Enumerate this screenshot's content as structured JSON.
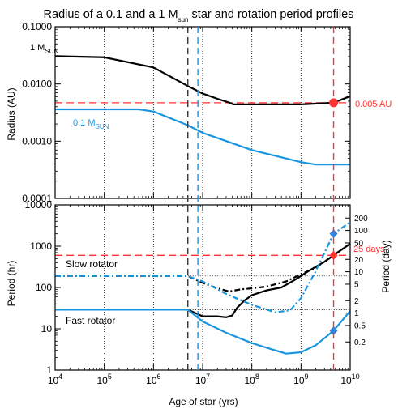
{
  "chart_data": {
    "type": "line",
    "title": {
      "main": "Radius of a 0.1 and a 1 M",
      "sub": "sun",
      "tail": " star and rotation period profiles"
    },
    "x_axis": {
      "label": "Age of star (yrs)",
      "scale": "log",
      "range": [
        10000,
        10000000000
      ],
      "tick_labels": [
        {
          "base": "10",
          "exp": "4"
        },
        {
          "base": "10",
          "exp": "5"
        },
        {
          "base": "10",
          "exp": "6"
        },
        {
          "base": "10",
          "exp": "7"
        },
        {
          "base": "10",
          "exp": "8"
        },
        {
          "base": "10",
          "exp": "9"
        },
        {
          "base": "10",
          "exp": "10"
        }
      ]
    },
    "colors": {
      "one_msun": "#000000",
      "tenth_msun": "#1a96e0",
      "reference": "#ff3333",
      "marker_blue": "#2f86e0",
      "dashed_black": "#333333"
    },
    "vertical_lines": [
      {
        "x": 5000000,
        "color": "#333333",
        "style": "dashed"
      },
      {
        "x": 8000000,
        "color": "#1a96e0",
        "style": "dashed"
      },
      {
        "x": 4600000000,
        "color": "#ff3333",
        "style": "dashed"
      }
    ],
    "panels": [
      {
        "name": "radius",
        "ylabel": "Radius (AU)",
        "yscale": "log",
        "ylim": [
          0.0001,
          0.1
        ],
        "ytick_labels": [
          "0.1000",
          "0.0100",
          "0.0010",
          "0.0001"
        ],
        "reference_line": {
          "y": 0.0047,
          "label": "0.005 AU"
        },
        "marker": {
          "x": 4600000000,
          "y": 0.0047,
          "shape": "circle",
          "color": "#ff3333"
        },
        "series_labels": [
          {
            "main": "1 M",
            "sub": "SUN",
            "color": "#000000"
          },
          {
            "main": "0.1 M",
            "sub": "SUN",
            "color": "#1a96e0"
          }
        ],
        "series": [
          {
            "color": "#000000",
            "style": "solid",
            "points": [
              [
                10000,
                0.0305
              ],
              [
                100000,
                0.0292
              ],
              [
                1000000,
                0.0194
              ],
              [
                5000000,
                0.0092
              ],
              [
                10000000,
                0.0068
              ],
              [
                20000000,
                0.0055
              ],
              [
                35000000,
                0.0047
              ],
              [
                42000000,
                0.0044
              ],
              [
                100000000,
                0.0044
              ],
              [
                1000000000,
                0.0044
              ],
              [
                4600000000,
                0.0047
              ],
              [
                10000000000,
                0.0061
              ]
            ]
          },
          {
            "color": "#1a96e0",
            "style": "solid",
            "points": [
              [
                10000,
                0.0036
              ],
              [
                500000,
                0.0036
              ],
              [
                1000000,
                0.0033
              ],
              [
                5000000,
                0.0019
              ],
              [
                10000000,
                0.0014
              ],
              [
                100000000,
                0.0007
              ],
              [
                1000000000,
                0.00043
              ],
              [
                2000000000,
                0.00039
              ],
              [
                10000000000,
                0.00039
              ]
            ]
          }
        ]
      },
      {
        "name": "period",
        "ylabel": "Period (hr)",
        "ylabel_right": "Period (day)",
        "yscale": "log",
        "ylim": [
          1,
          10000
        ],
        "ytick_labels": [
          "10000",
          "1000",
          "100",
          "10",
          "1"
        ],
        "right_tick_labels": [
          "200",
          "100",
          "50",
          "20",
          "10",
          "5",
          "2",
          "1",
          "0.5",
          "0.2"
        ],
        "right_tick_values": [
          200,
          100,
          50,
          20,
          10,
          5,
          2,
          1,
          0.5,
          0.2
        ],
        "reference_line": {
          "y": 600,
          "label": "25 days"
        },
        "annotations": [
          "Slow rotator",
          "Fast rotator"
        ],
        "markers": [
          {
            "x": 4600000000,
            "y": 600,
            "shape": "diamond",
            "color": "#ff3333"
          },
          {
            "x": 4600000000,
            "y": 2000,
            "shape": "diamond",
            "color": "#2f86e0"
          },
          {
            "x": 4600000000,
            "y": 9,
            "shape": "diamond",
            "color": "#2f86e0"
          }
        ],
        "dotted_guides": [
          {
            "y": 190,
            "x_from": 5000000,
            "x_to": 10000000000
          },
          {
            "y": 29,
            "x_from": 5000000,
            "x_to": 10000000000
          }
        ],
        "series": [
          {
            "color": "#000000",
            "style": "dashdot",
            "points": [
              [
                10000,
                190
              ],
              [
                5000000,
                190
              ],
              [
                10000000,
                130
              ],
              [
                20000000,
                95
              ],
              [
                35000000,
                80
              ],
              [
                60000000,
                90
              ],
              [
                100000000,
                95
              ],
              [
                200000000,
                105
              ],
              [
                500000000,
                140
              ],
              [
                1000000000,
                210
              ],
              [
                2000000000,
                300
              ],
              [
                4600000000,
                600
              ],
              [
                10000000000,
                1150
              ]
            ]
          },
          {
            "color": "#000000",
            "style": "solid",
            "points": [
              [
                10000,
                29
              ],
              [
                5000000,
                29
              ],
              [
                10000000,
                20
              ],
              [
                20000000,
                20
              ],
              [
                30000000,
                19
              ],
              [
                40000000,
                21
              ],
              [
                50000000,
                32
              ],
              [
                70000000,
                48
              ],
              [
                100000000,
                65
              ],
              [
                200000000,
                85
              ],
              [
                400000000,
                100
              ],
              [
                800000000,
                160
              ],
              [
                1500000000,
                260
              ],
              [
                3000000000,
                420
              ],
              [
                4600000000,
                600
              ],
              [
                10000000000,
                1150
              ]
            ]
          },
          {
            "color": "#1a96e0",
            "style": "dashdot",
            "points": [
              [
                10000,
                190
              ],
              [
                5000000,
                190
              ],
              [
                10000000,
                140
              ],
              [
                30000000,
                70
              ],
              [
                100000000,
                38
              ],
              [
                300000000,
                25
              ],
              [
                600000000,
                28
              ],
              [
                1000000000,
                55
              ],
              [
                2000000000,
                250
              ],
              [
                4600000000,
                2000
              ],
              [
                10000000000,
                3800
              ]
            ]
          },
          {
            "color": "#1a96e0",
            "style": "solid",
            "points": [
              [
                10000,
                29
              ],
              [
                5000000,
                29
              ],
              [
                10000000,
                15
              ],
              [
                30000000,
                8
              ],
              [
                100000000,
                4.5
              ],
              [
                300000000,
                3
              ],
              [
                500000000,
                2.5
              ],
              [
                1000000000,
                2.7
              ],
              [
                2000000000,
                4
              ],
              [
                4600000000,
                9
              ],
              [
                10000000000,
                27
              ]
            ]
          }
        ]
      }
    ]
  }
}
